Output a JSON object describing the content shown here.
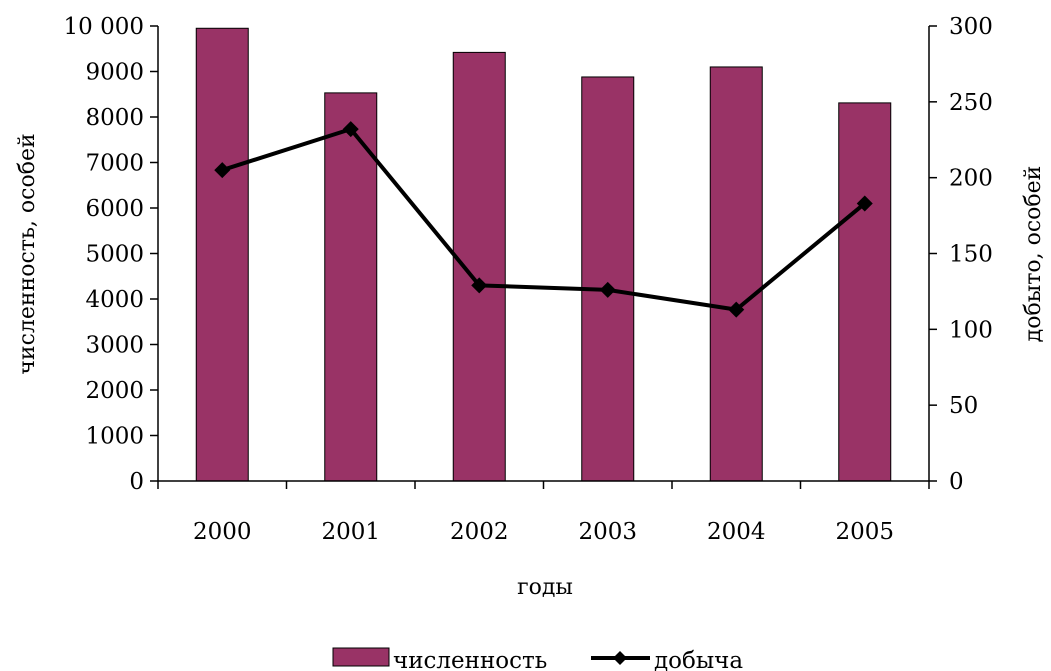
{
  "chart_data": {
    "type": "bar",
    "title": "",
    "categories": [
      "2000",
      "2001",
      "2002",
      "2003",
      "2004",
      "2005"
    ],
    "xlabel": "годы",
    "ylabel_left": "численность, особей",
    "ylabel_right": "добыто, особей",
    "ylim_left": [
      0,
      10000
    ],
    "ylim_right": [
      0,
      300
    ],
    "yticks_left": [
      "0",
      "1000",
      "2000",
      "3000",
      "4000",
      "5000",
      "6000",
      "7000",
      "8000",
      "9000",
      "10 000"
    ],
    "yticks_right": [
      "0",
      "50",
      "100",
      "150",
      "200",
      "250",
      "300"
    ],
    "grid": false,
    "legend_position": "bottom",
    "series": [
      {
        "name": "численность",
        "type": "bar",
        "axis": "left",
        "color": "#993366",
        "values": [
          9950,
          8530,
          9420,
          8880,
          9100,
          8310
        ]
      },
      {
        "name": "добыча",
        "type": "line",
        "axis": "right",
        "color": "#000000",
        "marker": "diamond",
        "values": [
          205,
          232,
          129,
          126,
          113,
          183
        ]
      }
    ]
  }
}
